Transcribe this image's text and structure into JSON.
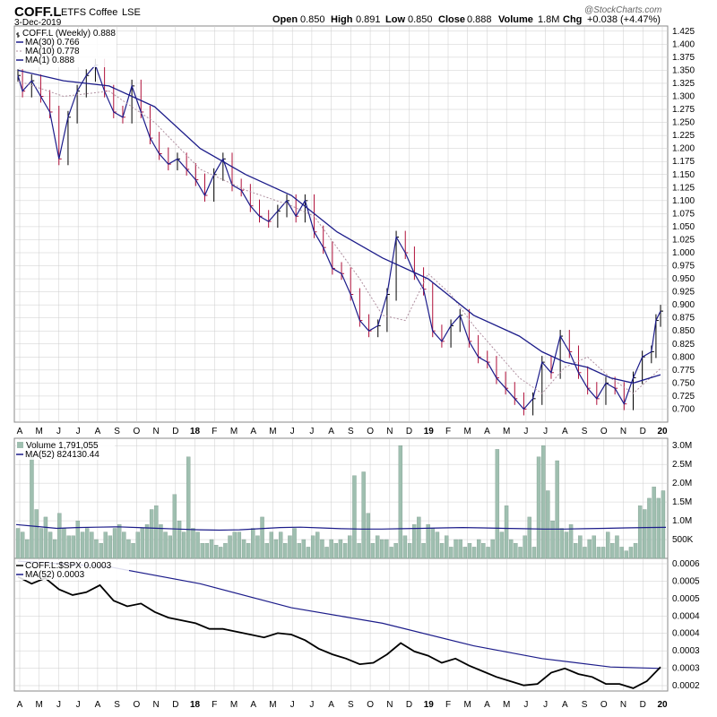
{
  "header": {
    "symbol": "COFF.L",
    "name": "ETFS Coffee",
    "exchange": "LSE",
    "date": "3-Dec-2019",
    "open_label": "Open",
    "open": "0.850",
    "high_label": "High",
    "high": "0.891",
    "low_label": "Low",
    "low": "0.850",
    "close_label": "Close",
    "close": "0.888",
    "volume_label": "Volume",
    "volume": "1.8M",
    "chg_label": "Chg",
    "chg": "+0.038 (+4.47%)",
    "watermark": "@StockCharts.com"
  },
  "colors": {
    "up": "#000000",
    "down": "#b0103a",
    "ma30": "#1c1c8a",
    "ma10": "#b090a0",
    "volume_bar": "#9fbfb0",
    "ratio_line": "#000000",
    "grid": "#cccccc"
  },
  "chart_data": [
    {
      "type": "line",
      "panel": "price",
      "legend": [
        {
          "label": "COFF.L (Weekly) 0.888",
          "style": "ohlc"
        },
        {
          "label": "MA(30) 0.766",
          "style": "solid-navy"
        },
        {
          "label": "MA(10) 0.778",
          "style": "dotted-mauve"
        },
        {
          "label": "MA(1) 0.888",
          "style": "solid-navy"
        }
      ],
      "y_ticks": [
        "1.425",
        "1.400",
        "1.375",
        "1.350",
        "1.325",
        "1.300",
        "1.275",
        "1.250",
        "1.225",
        "1.200",
        "1.175",
        "1.150",
        "1.125",
        "1.100",
        "1.075",
        "1.050",
        "1.025",
        "1.000",
        "0.975",
        "0.950",
        "0.925",
        "0.900",
        "0.875",
        "0.850",
        "0.825",
        "0.800",
        "0.775",
        "0.750",
        "0.725",
        "0.700"
      ],
      "ylim": [
        0.675,
        1.435
      ],
      "x_range": [
        0,
        139
      ],
      "close_points": [
        [
          0,
          1.34
        ],
        [
          1,
          1.31
        ],
        [
          3,
          1.33
        ],
        [
          5,
          1.3
        ],
        [
          7,
          1.27
        ],
        [
          9,
          1.18
        ],
        [
          11,
          1.26
        ],
        [
          13,
          1.31
        ],
        [
          15,
          1.34
        ],
        [
          17,
          1.36
        ],
        [
          19,
          1.31
        ],
        [
          21,
          1.27
        ],
        [
          23,
          1.26
        ],
        [
          25,
          1.32
        ],
        [
          27,
          1.27
        ],
        [
          29,
          1.22
        ],
        [
          31,
          1.19
        ],
        [
          33,
          1.17
        ],
        [
          35,
          1.18
        ],
        [
          37,
          1.16
        ],
        [
          39,
          1.14
        ],
        [
          41,
          1.11
        ],
        [
          43,
          1.15
        ],
        [
          45,
          1.18
        ],
        [
          47,
          1.13
        ],
        [
          49,
          1.12
        ],
        [
          51,
          1.09
        ],
        [
          53,
          1.07
        ],
        [
          55,
          1.06
        ],
        [
          57,
          1.08
        ],
        [
          59,
          1.1
        ],
        [
          61,
          1.07
        ],
        [
          63,
          1.1
        ],
        [
          65,
          1.04
        ],
        [
          67,
          1.01
        ],
        [
          69,
          0.97
        ],
        [
          71,
          0.96
        ],
        [
          73,
          0.92
        ],
        [
          75,
          0.87
        ],
        [
          77,
          0.85
        ],
        [
          79,
          0.86
        ],
        [
          81,
          0.92
        ],
        [
          83,
          1.03
        ],
        [
          85,
          1.0
        ],
        [
          87,
          0.96
        ],
        [
          89,
          0.93
        ],
        [
          91,
          0.85
        ],
        [
          93,
          0.83
        ],
        [
          95,
          0.86
        ],
        [
          97,
          0.88
        ],
        [
          99,
          0.83
        ],
        [
          101,
          0.8
        ],
        [
          103,
          0.79
        ],
        [
          105,
          0.76
        ],
        [
          107,
          0.74
        ],
        [
          109,
          0.72
        ],
        [
          111,
          0.7
        ],
        [
          113,
          0.72
        ],
        [
          115,
          0.79
        ],
        [
          117,
          0.77
        ],
        [
          119,
          0.84
        ],
        [
          121,
          0.81
        ],
        [
          123,
          0.77
        ],
        [
          125,
          0.74
        ],
        [
          127,
          0.72
        ],
        [
          129,
          0.75
        ],
        [
          131,
          0.74
        ],
        [
          133,
          0.71
        ],
        [
          135,
          0.76
        ],
        [
          137,
          0.8
        ],
        [
          139,
          0.81
        ],
        [
          140,
          0.87
        ],
        [
          141,
          0.888
        ]
      ],
      "ma30_points": [
        [
          0,
          1.35
        ],
        [
          10,
          1.33
        ],
        [
          20,
          1.32
        ],
        [
          30,
          1.28
        ],
        [
          40,
          1.2
        ],
        [
          50,
          1.15
        ],
        [
          60,
          1.11
        ],
        [
          70,
          1.04
        ],
        [
          80,
          0.99
        ],
        [
          90,
          0.95
        ],
        [
          100,
          0.88
        ],
        [
          110,
          0.84
        ],
        [
          115,
          0.81
        ],
        [
          120,
          0.79
        ],
        [
          125,
          0.78
        ],
        [
          130,
          0.76
        ],
        [
          135,
          0.75
        ],
        [
          141,
          0.766
        ]
      ],
      "ma10_points": [
        [
          0,
          1.33
        ],
        [
          10,
          1.3
        ],
        [
          20,
          1.31
        ],
        [
          30,
          1.25
        ],
        [
          40,
          1.16
        ],
        [
          50,
          1.12
        ],
        [
          60,
          1.09
        ],
        [
          65,
          1.07
        ],
        [
          70,
          1.01
        ],
        [
          75,
          0.95
        ],
        [
          80,
          0.88
        ],
        [
          85,
          0.87
        ],
        [
          90,
          0.96
        ],
        [
          95,
          0.92
        ],
        [
          100,
          0.86
        ],
        [
          105,
          0.81
        ],
        [
          110,
          0.76
        ],
        [
          115,
          0.73
        ],
        [
          120,
          0.78
        ],
        [
          125,
          0.8
        ],
        [
          130,
          0.76
        ],
        [
          135,
          0.73
        ],
        [
          141,
          0.778
        ]
      ]
    },
    {
      "type": "bar",
      "panel": "volume",
      "legend": [
        {
          "label": "Volume 1,791,055",
          "style": "bar"
        },
        {
          "label": "MA(52) 824130.44",
          "style": "solid-navy"
        }
      ],
      "y_ticks": [
        "3.0M",
        "2.5M",
        "2.0M",
        "1.5M",
        "1.0M",
        "500K"
      ],
      "ylim": [
        0,
        3100000
      ],
      "values": [
        800000,
        700000,
        500000,
        2700000,
        1300000,
        800000,
        1100000,
        700000,
        500000,
        1200000,
        800000,
        600000,
        600000,
        1000000,
        700000,
        800000,
        700000,
        500000,
        400000,
        700000,
        600000,
        800000,
        900000,
        700000,
        500000,
        400000,
        700000,
        800000,
        900000,
        1300000,
        1400000,
        900000,
        700000,
        600000,
        1700000,
        1000000,
        700000,
        2700000,
        800000,
        700000,
        400000,
        400000,
        500000,
        350000,
        300000,
        400000,
        600000,
        700000,
        700000,
        500000,
        400000,
        800000,
        600000,
        1100000,
        400000,
        700000,
        500000,
        700000,
        400000,
        600000,
        800000,
        400000,
        500000,
        300000,
        600000,
        700000,
        500000,
        300000,
        500000,
        400000,
        500000,
        400000,
        600000,
        2200000,
        400000,
        2300000,
        1200000,
        400000,
        600000,
        500000,
        500000,
        300000,
        400000,
        3000000,
        600000,
        400000,
        900000,
        1100000,
        400000,
        900000,
        800000,
        700000,
        400000,
        600000,
        300000,
        500000,
        500000,
        300000,
        400000,
        300000,
        500000,
        400000,
        300000,
        500000,
        2900000,
        700000,
        1400000,
        500000,
        400000,
        300000,
        600000,
        1100000,
        300000,
        2700000,
        3000000,
        1800000,
        1000000,
        2600000,
        800000,
        700000,
        900000,
        400000,
        600000,
        300000,
        500000,
        600000,
        300000,
        300000,
        700000,
        400000,
        600000,
        300000,
        200000,
        300000,
        400000,
        1400000,
        1300000,
        1600000,
        1900000,
        1600000,
        1800000
      ],
      "ma52": [
        900000,
        850000,
        800000,
        820000,
        830000,
        840000,
        820000,
        800000,
        780000,
        760000,
        750000,
        760000,
        790000,
        820000,
        830000,
        810000,
        790000,
        780000,
        780000,
        790000,
        800000,
        810000,
        820000,
        810000,
        800000,
        790000,
        780000,
        780000,
        790000,
        800000,
        810000,
        820000,
        824130
      ]
    },
    {
      "type": "line",
      "panel": "ratio",
      "legend": [
        {
          "label": "COFF.L:$SPX 0.0003",
          "style": "solid-black"
        },
        {
          "label": "MA(52) 0.0003",
          "style": "solid-navy"
        }
      ],
      "y_ticks": [
        "0.0006",
        "0.0005",
        "0.0005",
        "0.0004",
        "0.0004",
        "0.0003",
        "0.0003",
        "0.0002"
      ],
      "ratio_points": [
        [
          0,
          0.000575
        ],
        [
          3,
          0.00055
        ],
        [
          6,
          0.00057
        ],
        [
          9,
          0.00053
        ],
        [
          12,
          0.00051
        ],
        [
          15,
          0.00052
        ],
        [
          18,
          0.000545
        ],
        [
          21,
          0.00049
        ],
        [
          24,
          0.00047
        ],
        [
          27,
          0.00048
        ],
        [
          30,
          0.00045
        ],
        [
          33,
          0.00043
        ],
        [
          36,
          0.00042
        ],
        [
          39,
          0.00041
        ],
        [
          42,
          0.00039
        ],
        [
          45,
          0.00039
        ],
        [
          48,
          0.00038
        ],
        [
          51,
          0.00037
        ],
        [
          54,
          0.00036
        ],
        [
          57,
          0.000375
        ],
        [
          60,
          0.00037
        ],
        [
          63,
          0.00035
        ],
        [
          66,
          0.00032
        ],
        [
          69,
          0.0003
        ],
        [
          72,
          0.000285
        ],
        [
          75,
          0.000265
        ],
        [
          78,
          0.00027
        ],
        [
          81,
          0.0003
        ],
        [
          84,
          0.00034
        ],
        [
          87,
          0.00031
        ],
        [
          90,
          0.000295
        ],
        [
          93,
          0.00027
        ],
        [
          96,
          0.000285
        ],
        [
          99,
          0.00026
        ],
        [
          102,
          0.00024
        ],
        [
          105,
          0.00022
        ],
        [
          108,
          0.000205
        ],
        [
          111,
          0.00019
        ],
        [
          114,
          0.000195
        ],
        [
          117,
          0.000235
        ],
        [
          120,
          0.00025
        ],
        [
          123,
          0.00023
        ],
        [
          126,
          0.00022
        ],
        [
          129,
          0.000195
        ],
        [
          132,
          0.000195
        ],
        [
          135,
          0.00018
        ],
        [
          138,
          0.000205
        ],
        [
          141,
          0.000255
        ]
      ],
      "ma52_points": [
        [
          0,
          0.00063
        ],
        [
          20,
          0.00061
        ],
        [
          40,
          0.00055
        ],
        [
          60,
          0.000465
        ],
        [
          80,
          0.00041
        ],
        [
          100,
          0.00033
        ],
        [
          115,
          0.000285
        ],
        [
          130,
          0.000255
        ],
        [
          141,
          0.00025
        ]
      ]
    }
  ],
  "x_axis": {
    "labels": [
      "A",
      "M",
      "J",
      "J",
      "A",
      "S",
      "O",
      "N",
      "D",
      "18",
      "F",
      "M",
      "A",
      "M",
      "J",
      "J",
      "A",
      "S",
      "O",
      "N",
      "D",
      "19",
      "F",
      "M",
      "A",
      "M",
      "J",
      "J",
      "A",
      "S",
      "O",
      "N",
      "D",
      "20"
    ]
  }
}
